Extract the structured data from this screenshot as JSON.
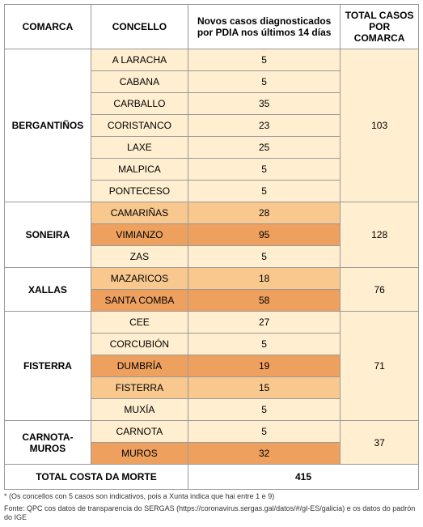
{
  "headers": {
    "comarca": "COMARCA",
    "concello": "CONCELLO",
    "casos": "Novos casos diagnosticados por PDIA nos últimos 14 días",
    "total": "TOTAL CASOS POR COMARCA"
  },
  "colors": {
    "light": "#ffeecf",
    "medium": "#f8c88e",
    "dark": "#eea15e",
    "white": "#ffffff"
  },
  "comarcas": [
    {
      "name": "BERGANTIÑOS",
      "total": "103",
      "concellos": [
        {
          "name": "A LARACHA",
          "value": "5",
          "color": "light"
        },
        {
          "name": "CABANA",
          "value": "5",
          "color": "light"
        },
        {
          "name": "CARBALLO",
          "value": "35",
          "color": "light"
        },
        {
          "name": "CORISTANCO",
          "value": "23",
          "color": "light"
        },
        {
          "name": "LAXE",
          "value": "25",
          "color": "light"
        },
        {
          "name": "MALPICA",
          "value": "5",
          "color": "light"
        },
        {
          "name": "PONTECESO",
          "value": "5",
          "color": "light"
        }
      ]
    },
    {
      "name": "SONEIRA",
      "total": "128",
      "concellos": [
        {
          "name": "CAMARIÑAS",
          "value": "28",
          "color": "medium"
        },
        {
          "name": "VIMIANZO",
          "value": "95",
          "color": "dark"
        },
        {
          "name": "ZAS",
          "value": "5",
          "color": "light"
        }
      ]
    },
    {
      "name": "XALLAS",
      "total": "76",
      "concellos": [
        {
          "name": "MAZARICOS",
          "value": "18",
          "color": "medium"
        },
        {
          "name": "SANTA COMBA",
          "value": "58",
          "color": "dark"
        }
      ]
    },
    {
      "name": "FISTERRA",
      "total": "71",
      "concellos": [
        {
          "name": "CEE",
          "value": "27",
          "color": "light"
        },
        {
          "name": "CORCUBIÓN",
          "value": "5",
          "color": "light"
        },
        {
          "name": "DUMBRÍA",
          "value": "19",
          "color": "dark"
        },
        {
          "name": "FISTERRA",
          "value": "15",
          "color": "medium"
        },
        {
          "name": "MUXÍA",
          "value": "5",
          "color": "light"
        }
      ]
    },
    {
      "name": "CARNOTA-MUROS",
      "total": "37",
      "concellos": [
        {
          "name": "CARNOTA",
          "value": "5",
          "color": "light"
        },
        {
          "name": "MUROS",
          "value": "32",
          "color": "dark"
        }
      ]
    }
  ],
  "totals": {
    "label": "TOTAL COSTA DA MORTE",
    "value": "415"
  },
  "footnotes": {
    "line1": "* (Os concellos con 5 casos son indicativos, pois a Xunta indica que hai entre 1 e 9)",
    "line2": "Fonte: QPC cos datos de transparencia do SERGAS (https://coronavirus.sergas.gal/datos/#/gl-ES/galicia) e os datos do padrón do IGE"
  }
}
